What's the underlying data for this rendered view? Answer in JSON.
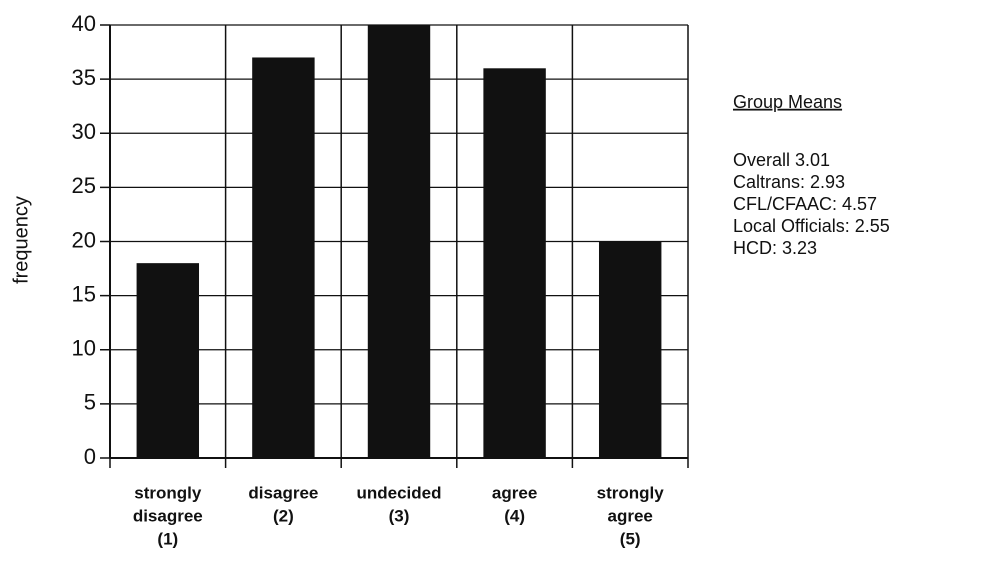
{
  "chart_data": {
    "type": "bar",
    "y_label": "frequency",
    "categories": [
      [
        "strongly",
        "disagree",
        "(1)"
      ],
      [
        "disagree",
        "(2)"
      ],
      [
        "undecided",
        "(3)"
      ],
      [
        "agree",
        "(4)"
      ],
      [
        "strongly",
        "agree",
        "(5)"
      ]
    ],
    "values": [
      18,
      37,
      40,
      36,
      20
    ],
    "color": "#111111",
    "ylim": [
      0,
      40
    ],
    "yticks": [
      0,
      5,
      10,
      15,
      20,
      25,
      30,
      35,
      40
    ],
    "grid": true
  },
  "group_means": {
    "title": "Group Means",
    "items": [
      "Overall  3.01",
      "Caltrans: 2.93",
      "CFL/CFAAC: 4.57",
      "Local Officials: 2.55",
      "HCD: 3.23"
    ]
  }
}
